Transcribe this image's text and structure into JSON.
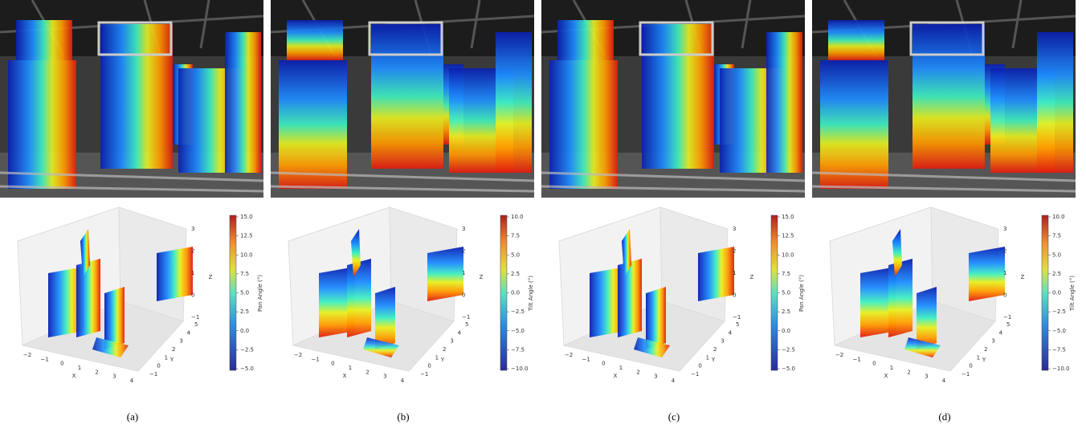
{
  "panels": [
    {
      "caption": "(a)",
      "colorbar": {
        "label": "Pan Angle (°)",
        "ticks": [
          "15.0",
          "12.5",
          "10.0",
          "7.5",
          "5.0",
          "2.5",
          "0.0",
          "−2.5",
          "−5.0"
        ]
      },
      "axes": {
        "x_label": "X",
        "y_label": "Y",
        "z_label": "Z",
        "x_ticks": [
          "−2",
          "−1",
          "0",
          "1",
          "2",
          "3",
          "4"
        ],
        "y_ticks": [
          "−1",
          "0",
          "1",
          "2",
          "3",
          "4",
          "5"
        ],
        "z_ticks": [
          "3",
          "2",
          "1",
          "0",
          "−1"
        ]
      }
    },
    {
      "caption": "(b)",
      "colorbar": {
        "label": "Tilt Angle (°)",
        "ticks": [
          "10.0",
          "7.5",
          "5.0",
          "2.5",
          "0.0",
          "−2.5",
          "−5.0",
          "−7.5",
          "−10.0"
        ]
      },
      "axes": {
        "x_label": "X",
        "y_label": "Y",
        "z_label": "Z",
        "x_ticks": [
          "−2",
          "−1",
          "0",
          "1",
          "2",
          "3",
          "4"
        ],
        "y_ticks": [
          "−1",
          "0",
          "1",
          "2",
          "3",
          "4",
          "5"
        ],
        "z_ticks": [
          "3",
          "2",
          "1",
          "0",
          "−1"
        ]
      }
    },
    {
      "caption": "(c)",
      "colorbar": {
        "label": "Pan Angle (°)",
        "ticks": [
          "15.0",
          "12.5",
          "10.0",
          "7.5",
          "5.0",
          "2.5",
          "0.0",
          "−2.5",
          "−5.0"
        ]
      },
      "axes": {
        "x_label": "X",
        "y_label": "Y",
        "z_label": "Z",
        "x_ticks": [
          "−2",
          "−1",
          "0",
          "1",
          "2",
          "3",
          "4"
        ],
        "y_ticks": [
          "−1",
          "0",
          "1",
          "2",
          "3",
          "4",
          "5"
        ],
        "z_ticks": [
          "3",
          "2",
          "1",
          "0",
          "−1"
        ]
      }
    },
    {
      "caption": "(d)",
      "colorbar": {
        "label": "Tilt Angle (°)",
        "ticks": [
          "10.0",
          "7.5",
          "5.0",
          "2.5",
          "0.0",
          "−2.5",
          "−5.0",
          "−7.5",
          "−10.0"
        ]
      },
      "axes": {
        "x_label": "X",
        "y_label": "Y",
        "z_label": "Z",
        "x_ticks": [
          "−2",
          "−1",
          "0",
          "1",
          "2",
          "3",
          "4"
        ],
        "y_ticks": [
          "−1",
          "0",
          "1",
          "2",
          "3",
          "4",
          "5"
        ],
        "z_ticks": [
          "3",
          "2",
          "1",
          "0",
          "−1"
        ]
      }
    }
  ]
}
